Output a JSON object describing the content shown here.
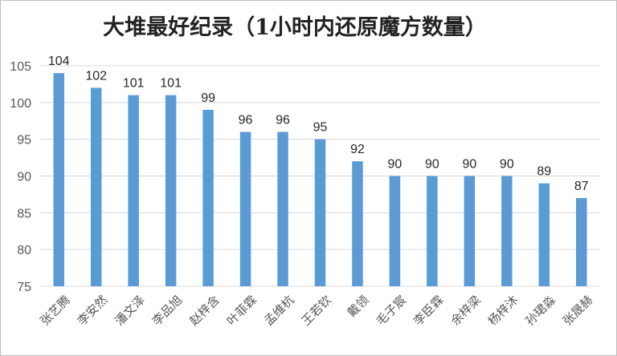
{
  "chart_data": {
    "type": "bar",
    "title": "大堆最好纪录（1小时内还原魔方数量）",
    "categories": [
      "张艺腾",
      "李安然",
      "潘文泽",
      "李品旭",
      "赵梓含",
      "叶菲霖",
      "孟维杭",
      "王若钦",
      "戴领",
      "毛子宸",
      "李臣霖",
      "余梓梁",
      "杨梓沐",
      "孙珺淼",
      "张晟赫"
    ],
    "values": [
      104,
      102,
      101,
      101,
      99,
      96,
      96,
      95,
      92,
      90,
      90,
      90,
      90,
      89,
      87
    ],
    "ylim": [
      75,
      105
    ],
    "yticks": [
      75,
      80,
      85,
      90,
      95,
      100,
      105
    ],
    "xlabel": "",
    "ylabel": "",
    "grid": true,
    "data_labels": true,
    "colors": {
      "bar": "#5b9bd5",
      "grid": "#d9d9d9"
    }
  }
}
